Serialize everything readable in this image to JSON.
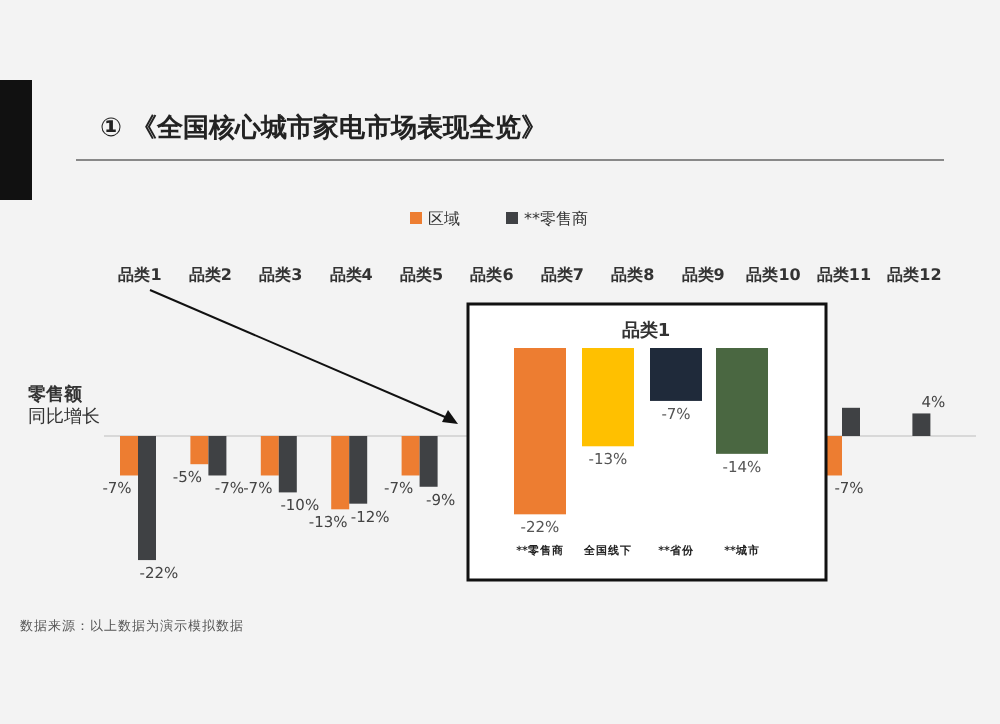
{
  "chart_data": [
    {
      "type": "bar",
      "title": "① 《全国核心城市家电市场表现全览》",
      "ylabel": "零售额同比增长",
      "legend": "top",
      "annotations": [
        "数据来源：以上数据为演示模拟数据"
      ],
      "categories": [
        "品类1",
        "品类2",
        "品类3",
        "品类4",
        "品类5",
        "品类6",
        "品类7",
        "品类8",
        "品类9",
        "品类10",
        "品类11",
        "品类12"
      ],
      "series": [
        {
          "name": "区域",
          "color": "#ed7d31",
          "values": [
            -7,
            -5,
            -7,
            -13,
            -7,
            null,
            null,
            null,
            null,
            null,
            -7,
            null
          ],
          "value_labels": [
            "-7%",
            "-5%",
            "-7%",
            "-13%",
            "-7%",
            null,
            null,
            null,
            null,
            null,
            "-7%",
            null
          ]
        },
        {
          "name": "**零售商",
          "color": "#3f4144",
          "values": [
            -22,
            -7,
            -10,
            -12,
            -9,
            null,
            null,
            null,
            null,
            null,
            5,
            4
          ],
          "value_labels": [
            "-22%",
            "-7%",
            "-10%",
            "-12%",
            "-9%",
            null,
            null,
            null,
            null,
            null,
            null,
            "4%"
          ]
        }
      ]
    },
    {
      "type": "bar",
      "title": "品类1",
      "categories": [
        "**零售商",
        "全国线下",
        "**省份",
        "**城市"
      ],
      "values": [
        -22,
        -13,
        -7,
        -14
      ],
      "colors": [
        "#ed7d31",
        "#ffc000",
        "#1f2a3a",
        "#4a6741"
      ],
      "value_labels": [
        "-22%",
        "-13%",
        "-7%",
        "-14%"
      ]
    }
  ]
}
